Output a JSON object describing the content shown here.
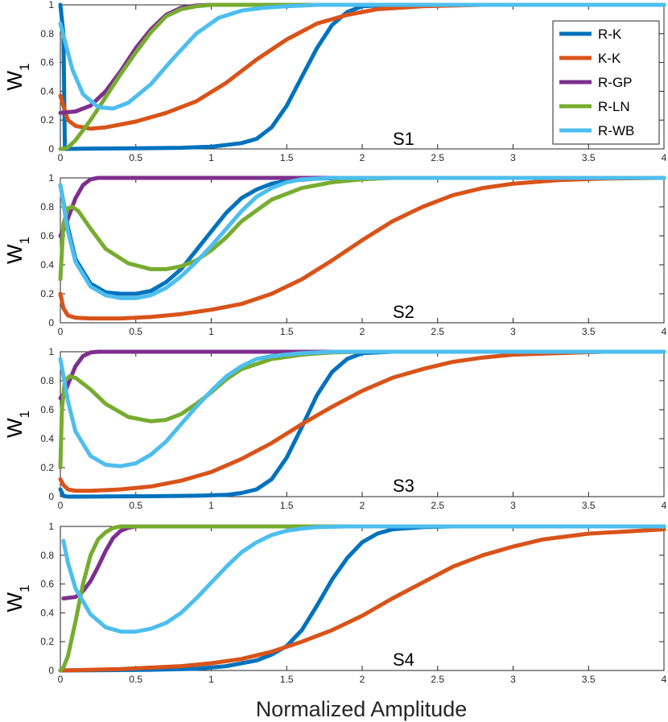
{
  "chart_data": {
    "type": "line",
    "xlabel": "Normalized Amplitude",
    "ylabel_main": "W",
    "ylabel_sub": "1",
    "xlim": [
      0,
      4
    ],
    "ylim": [
      0,
      1
    ],
    "xticks": [
      0,
      0.5,
      1,
      1.5,
      2,
      2.5,
      3,
      3.5,
      4
    ],
    "xtick_labels": [
      "0",
      "0.5",
      "1",
      "1.5",
      "2",
      "2.5",
      "3",
      "3.5",
      "4"
    ],
    "yticks": [
      0,
      0.2,
      0.4,
      0.6,
      0.8,
      1
    ],
    "ytick_labels": [
      "0",
      "0.2",
      "0.4",
      "0.6",
      "0.8",
      "1"
    ],
    "legend_position": "top-right of first panel",
    "series_meta": [
      {
        "key": "rk",
        "name": "R-K",
        "color": "#0072BD"
      },
      {
        "key": "kk",
        "name": "K-K",
        "color": "#D95319"
      },
      {
        "key": "rgp",
        "name": "R-GP",
        "color": "#7E2F8E"
      },
      {
        "key": "rln",
        "name": "R-LN",
        "color": "#77AC30"
      },
      {
        "key": "rwb",
        "name": "R-WB",
        "color": "#4DBEEE"
      }
    ],
    "panels": [
      {
        "label": "S1",
        "series": {
          "rk": {
            "x": [
              0,
              0.02,
              0.03,
              0.2,
              0.5,
              0.8,
              1.0,
              1.2,
              1.3,
              1.4,
              1.5,
              1.6,
              1.7,
              1.8,
              1.9,
              2.0,
              2.2,
              2.5,
              4.0
            ],
            "y": [
              1.0,
              0.8,
              0.0,
              0.002,
              0.004,
              0.008,
              0.015,
              0.04,
              0.07,
              0.15,
              0.3,
              0.5,
              0.7,
              0.86,
              0.95,
              0.99,
              1.0,
              1.0,
              1.0
            ]
          },
          "kk": {
            "x": [
              0,
              0.02,
              0.05,
              0.1,
              0.2,
              0.3,
              0.5,
              0.7,
              0.9,
              1.1,
              1.3,
              1.5,
              1.7,
              1.9,
              2.1,
              2.4,
              2.8,
              3.2,
              4.0
            ],
            "y": [
              0.37,
              0.3,
              0.2,
              0.16,
              0.14,
              0.15,
              0.19,
              0.25,
              0.33,
              0.46,
              0.62,
              0.76,
              0.87,
              0.93,
              0.97,
              0.99,
              1.0,
              1.0,
              1.0
            ]
          },
          "rgp": {
            "x": [
              0,
              0.1,
              0.2,
              0.3,
              0.4,
              0.5,
              0.6,
              0.7,
              0.8,
              0.9,
              1.0,
              1.1,
              4.0
            ],
            "y": [
              0.25,
              0.26,
              0.3,
              0.4,
              0.54,
              0.7,
              0.83,
              0.93,
              0.98,
              0.995,
              1.0,
              1.0,
              1.0
            ]
          },
          "rln": {
            "x": [
              0,
              0.02,
              0.05,
              0.1,
              0.2,
              0.3,
              0.4,
              0.5,
              0.6,
              0.7,
              0.8,
              0.9,
              1.0,
              1.1,
              4.0
            ],
            "y": [
              0.0,
              0.0,
              0.01,
              0.06,
              0.2,
              0.36,
              0.52,
              0.67,
              0.81,
              0.92,
              0.97,
              0.99,
              1.0,
              1.0,
              1.0
            ]
          },
          "rwb": {
            "x": [
              0,
              0.03,
              0.08,
              0.15,
              0.25,
              0.35,
              0.45,
              0.6,
              0.75,
              0.9,
              1.05,
              1.2,
              1.35,
              1.5,
              1.7,
              1.9,
              4.0
            ],
            "y": [
              0.87,
              0.75,
              0.55,
              0.38,
              0.29,
              0.28,
              0.32,
              0.45,
              0.63,
              0.8,
              0.91,
              0.96,
              0.98,
              0.99,
              1.0,
              1.0,
              1.0
            ]
          }
        }
      },
      {
        "label": "S2",
        "series": {
          "rk": {
            "x": [
              0,
              0.05,
              0.1,
              0.2,
              0.3,
              0.4,
              0.5,
              0.6,
              0.7,
              0.8,
              0.9,
              1.0,
              1.1,
              1.2,
              1.3,
              1.4,
              1.5,
              1.7,
              1.9,
              2.1,
              4.0
            ],
            "y": [
              0.95,
              0.66,
              0.44,
              0.27,
              0.21,
              0.2,
              0.2,
              0.22,
              0.28,
              0.37,
              0.5,
              0.63,
              0.76,
              0.86,
              0.92,
              0.96,
              0.98,
              0.995,
              1.0,
              1.0,
              1.0
            ]
          },
          "kk": {
            "x": [
              0,
              0.02,
              0.05,
              0.1,
              0.2,
              0.4,
              0.6,
              0.8,
              1.0,
              1.2,
              1.4,
              1.6,
              1.8,
              2.0,
              2.2,
              2.4,
              2.6,
              2.8,
              3.0,
              3.3,
              3.6,
              4.0
            ],
            "y": [
              0.2,
              0.1,
              0.05,
              0.035,
              0.03,
              0.03,
              0.04,
              0.06,
              0.09,
              0.13,
              0.2,
              0.3,
              0.43,
              0.57,
              0.7,
              0.8,
              0.88,
              0.93,
              0.96,
              0.985,
              0.995,
              1.0
            ]
          },
          "rgp": {
            "x": [
              0,
              0.02,
              0.05,
              0.1,
              0.15,
              0.2,
              0.25,
              0.3,
              0.35,
              0.4,
              4.0
            ],
            "y": [
              0.6,
              0.64,
              0.72,
              0.86,
              0.95,
              0.99,
              1.0,
              1.0,
              1.0,
              1.0,
              1.0
            ]
          },
          "rln": {
            "x": [
              0,
              0.02,
              0.05,
              0.08,
              0.12,
              0.2,
              0.3,
              0.45,
              0.6,
              0.7,
              0.8,
              0.9,
              1.0,
              1.1,
              1.2,
              1.4,
              1.6,
              1.8,
              2.0,
              2.2,
              4.0
            ],
            "y": [
              0.3,
              0.68,
              0.79,
              0.8,
              0.77,
              0.65,
              0.51,
              0.41,
              0.37,
              0.37,
              0.39,
              0.43,
              0.5,
              0.59,
              0.7,
              0.85,
              0.93,
              0.97,
              0.99,
              1.0,
              1.0
            ]
          },
          "rwb": {
            "x": [
              0,
              0.05,
              0.1,
              0.2,
              0.3,
              0.4,
              0.5,
              0.6,
              0.7,
              0.8,
              0.9,
              1.0,
              1.1,
              1.2,
              1.3,
              1.4,
              1.5,
              1.6,
              1.8,
              2.0,
              4.0
            ],
            "y": [
              0.95,
              0.63,
              0.42,
              0.25,
              0.19,
              0.17,
              0.17,
              0.19,
              0.24,
              0.32,
              0.42,
              0.53,
              0.65,
              0.77,
              0.87,
              0.93,
              0.97,
              0.99,
              1.0,
              1.0,
              1.0
            ]
          }
        }
      },
      {
        "label": "S3",
        "series": {
          "rk": {
            "x": [
              0,
              0.02,
              0.05,
              0.3,
              0.6,
              0.9,
              1.1,
              1.2,
              1.3,
              1.4,
              1.5,
              1.6,
              1.7,
              1.8,
              1.9,
              2.0,
              2.2,
              2.5,
              4.0
            ],
            "y": [
              0.05,
              0.005,
              0.0,
              0.001,
              0.003,
              0.006,
              0.012,
              0.025,
              0.05,
              0.12,
              0.27,
              0.48,
              0.7,
              0.86,
              0.95,
              0.99,
              1.0,
              1.0,
              1.0
            ]
          },
          "kk": {
            "x": [
              0,
              0.02,
              0.05,
              0.1,
              0.2,
              0.4,
              0.6,
              0.8,
              1.0,
              1.2,
              1.4,
              1.6,
              1.8,
              2.0,
              2.2,
              2.4,
              2.6,
              2.8,
              3.0,
              3.3,
              3.6,
              4.0
            ],
            "y": [
              0.12,
              0.08,
              0.05,
              0.04,
              0.04,
              0.05,
              0.07,
              0.11,
              0.17,
              0.26,
              0.37,
              0.5,
              0.62,
              0.73,
              0.82,
              0.88,
              0.93,
              0.96,
              0.98,
              0.99,
              1.0,
              1.0
            ]
          },
          "rgp": {
            "x": [
              0,
              0.03,
              0.06,
              0.1,
              0.15,
              0.2,
              0.25,
              0.3,
              4.0
            ],
            "y": [
              0.68,
              0.72,
              0.8,
              0.9,
              0.97,
              0.995,
              1.0,
              1.0,
              1.0
            ]
          },
          "rln": {
            "x": [
              0,
              0.01,
              0.03,
              0.06,
              0.1,
              0.2,
              0.3,
              0.45,
              0.6,
              0.7,
              0.8,
              0.9,
              1.0,
              1.1,
              1.2,
              1.4,
              1.6,
              1.8,
              2.0,
              4.0
            ],
            "y": [
              0.2,
              0.6,
              0.8,
              0.83,
              0.82,
              0.74,
              0.64,
              0.55,
              0.52,
              0.53,
              0.57,
              0.64,
              0.72,
              0.81,
              0.88,
              0.95,
              0.98,
              0.995,
              1.0,
              1.0
            ]
          },
          "rwb": {
            "x": [
              0,
              0.05,
              0.1,
              0.2,
              0.3,
              0.4,
              0.5,
              0.6,
              0.7,
              0.8,
              0.9,
              1.0,
              1.1,
              1.2,
              1.3,
              1.4,
              1.6,
              1.8,
              4.0
            ],
            "y": [
              0.95,
              0.66,
              0.45,
              0.28,
              0.22,
              0.21,
              0.23,
              0.29,
              0.38,
              0.5,
              0.62,
              0.73,
              0.83,
              0.9,
              0.95,
              0.97,
              0.99,
              1.0,
              1.0
            ]
          }
        }
      },
      {
        "label": "S4",
        "series": {
          "rk": {
            "x": [
              0,
              0.3,
              0.6,
              0.9,
              1.1,
              1.3,
              1.4,
              1.5,
              1.6,
              1.7,
              1.8,
              1.9,
              2.0,
              2.1,
              2.2,
              2.4,
              2.6,
              4.0
            ],
            "y": [
              0.0,
              0.002,
              0.005,
              0.012,
              0.03,
              0.07,
              0.11,
              0.17,
              0.28,
              0.45,
              0.63,
              0.78,
              0.89,
              0.95,
              0.98,
              0.995,
              1.0,
              1.0
            ]
          },
          "kk": {
            "x": [
              0,
              0.2,
              0.4,
              0.6,
              0.8,
              1.0,
              1.2,
              1.4,
              1.6,
              1.8,
              2.0,
              2.2,
              2.4,
              2.6,
              2.8,
              3.0,
              3.2,
              3.5,
              4.0
            ],
            "y": [
              0.0,
              0.005,
              0.01,
              0.02,
              0.03,
              0.05,
              0.08,
              0.13,
              0.2,
              0.28,
              0.38,
              0.5,
              0.61,
              0.72,
              0.8,
              0.86,
              0.91,
              0.95,
              0.98
            ]
          },
          "rgp": {
            "x": [
              0.02,
              0.1,
              0.15,
              0.2,
              0.25,
              0.3,
              0.35,
              0.4,
              0.45,
              0.5,
              0.55,
              0.6,
              4.0
            ],
            "y": [
              0.5,
              0.51,
              0.55,
              0.62,
              0.72,
              0.83,
              0.92,
              0.97,
              0.99,
              1.0,
              1.0,
              1.0,
              1.0
            ]
          },
          "rln": {
            "x": [
              0,
              0.02,
              0.05,
              0.1,
              0.15,
              0.2,
              0.25,
              0.3,
              0.35,
              0.4,
              0.45,
              0.5,
              0.6,
              4.0
            ],
            "y": [
              0.0,
              0.02,
              0.1,
              0.34,
              0.6,
              0.8,
              0.91,
              0.96,
              0.99,
              1.0,
              1.0,
              1.0,
              1.0,
              1.0
            ]
          },
          "rwb": {
            "x": [
              0.02,
              0.05,
              0.1,
              0.2,
              0.3,
              0.4,
              0.5,
              0.6,
              0.7,
              0.8,
              0.9,
              1.0,
              1.1,
              1.2,
              1.3,
              1.4,
              1.5,
              1.6,
              1.7,
              1.9,
              2.1,
              4.0
            ],
            "y": [
              0.9,
              0.75,
              0.57,
              0.39,
              0.3,
              0.27,
              0.27,
              0.29,
              0.33,
              0.4,
              0.5,
              0.61,
              0.72,
              0.82,
              0.89,
              0.94,
              0.97,
              0.985,
              0.995,
              1.0,
              1.0,
              1.0
            ]
          }
        }
      }
    ]
  }
}
